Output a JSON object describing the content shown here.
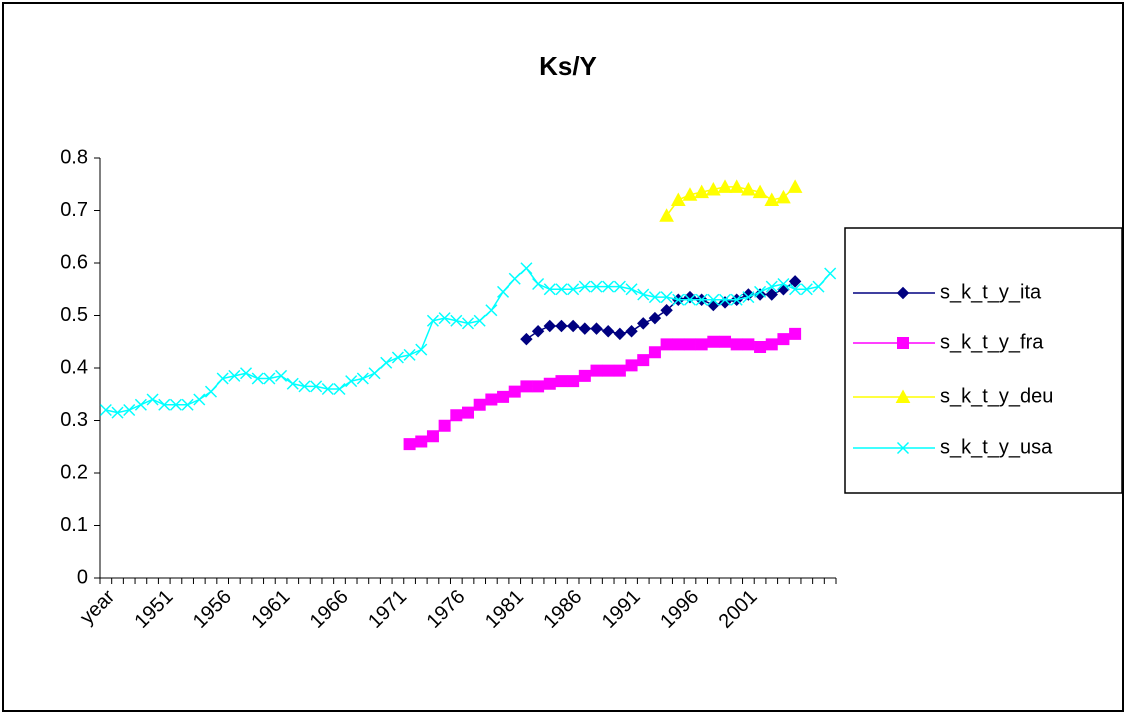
{
  "chart_data": {
    "type": "line",
    "title": "Ks/Y",
    "categories": [
      "year",
      null,
      null,
      null,
      null,
      "1951",
      null,
      null,
      null,
      null,
      "1956",
      null,
      null,
      null,
      null,
      "1961",
      null,
      null,
      null,
      null,
      "1966",
      null,
      null,
      null,
      null,
      "1971",
      null,
      null,
      null,
      null,
      "1976",
      null,
      null,
      null,
      null,
      "1981",
      null,
      null,
      null,
      null,
      "1986",
      null,
      null,
      null,
      null,
      "1991",
      null,
      null,
      null,
      null,
      "1996",
      null,
      null,
      null,
      null,
      "2001",
      null,
      null,
      null,
      null,
      null,
      null,
      null
    ],
    "series": [
      {
        "name": "s_k_t_y_ita",
        "color": "#000080",
        "marker": "diamond",
        "values": [
          null,
          null,
          null,
          null,
          null,
          null,
          null,
          null,
          null,
          null,
          null,
          null,
          null,
          null,
          null,
          null,
          null,
          null,
          null,
          null,
          null,
          null,
          null,
          null,
          null,
          null,
          null,
          null,
          null,
          null,
          null,
          null,
          null,
          null,
          null,
          null,
          0.455,
          0.47,
          0.48,
          0.48,
          0.48,
          0.475,
          0.475,
          0.47,
          0.465,
          0.47,
          0.485,
          0.495,
          0.51,
          0.53,
          0.535,
          0.53,
          0.52,
          0.525,
          0.53,
          0.54,
          0.54,
          0.54,
          0.55,
          0.565,
          null,
          null,
          null
        ]
      },
      {
        "name": "s_k_t_y_fra",
        "color": "#ff00ff",
        "marker": "square",
        "values": [
          null,
          null,
          null,
          null,
          null,
          null,
          null,
          null,
          null,
          null,
          null,
          null,
          null,
          null,
          null,
          null,
          null,
          null,
          null,
          null,
          null,
          null,
          null,
          null,
          null,
          null,
          0.255,
          0.26,
          0.27,
          0.29,
          0.31,
          0.315,
          0.33,
          0.34,
          0.345,
          0.355,
          0.365,
          0.365,
          0.37,
          0.375,
          0.375,
          0.385,
          0.395,
          0.395,
          0.395,
          0.405,
          0.415,
          0.43,
          0.445,
          0.445,
          0.445,
          0.445,
          0.45,
          0.45,
          0.445,
          0.445,
          0.44,
          0.445,
          0.455,
          0.465,
          null,
          null,
          null
        ]
      },
      {
        "name": "s_k_t_y_deu",
        "color": "#ffff00",
        "marker": "triangle",
        "values": [
          null,
          null,
          null,
          null,
          null,
          null,
          null,
          null,
          null,
          null,
          null,
          null,
          null,
          null,
          null,
          null,
          null,
          null,
          null,
          null,
          null,
          null,
          null,
          null,
          null,
          null,
          null,
          null,
          null,
          null,
          null,
          null,
          null,
          null,
          null,
          null,
          null,
          null,
          null,
          null,
          null,
          null,
          null,
          null,
          null,
          null,
          null,
          null,
          0.69,
          0.72,
          0.73,
          0.735,
          0.74,
          0.745,
          0.745,
          0.74,
          0.735,
          0.72,
          0.725,
          0.745,
          null,
          null,
          null
        ]
      },
      {
        "name": "s_k_t_y_usa",
        "color": "#00ffff",
        "marker": "x",
        "values": [
          0.32,
          0.315,
          0.32,
          0.33,
          0.34,
          0.33,
          0.33,
          0.33,
          0.34,
          0.355,
          0.38,
          0.385,
          0.39,
          0.38,
          0.38,
          0.385,
          0.37,
          0.365,
          0.365,
          0.36,
          0.36,
          0.375,
          0.38,
          0.39,
          0.41,
          0.42,
          0.425,
          0.435,
          0.49,
          0.495,
          0.49,
          0.485,
          0.49,
          0.51,
          0.545,
          0.57,
          0.59,
          0.56,
          0.55,
          0.55,
          0.55,
          0.555,
          0.555,
          0.555,
          0.555,
          0.55,
          0.54,
          0.535,
          0.535,
          0.53,
          0.53,
          0.53,
          0.53,
          0.53,
          0.53,
          0.535,
          0.545,
          0.555,
          0.56,
          0.55,
          0.55,
          0.555,
          0.58
        ]
      }
    ],
    "ylim": [
      0,
      0.8
    ],
    "yticks": [
      0,
      0.1,
      0.2,
      0.3,
      0.4,
      0.5,
      0.6,
      0.7,
      0.8
    ],
    "grid": false,
    "legend": "right"
  }
}
